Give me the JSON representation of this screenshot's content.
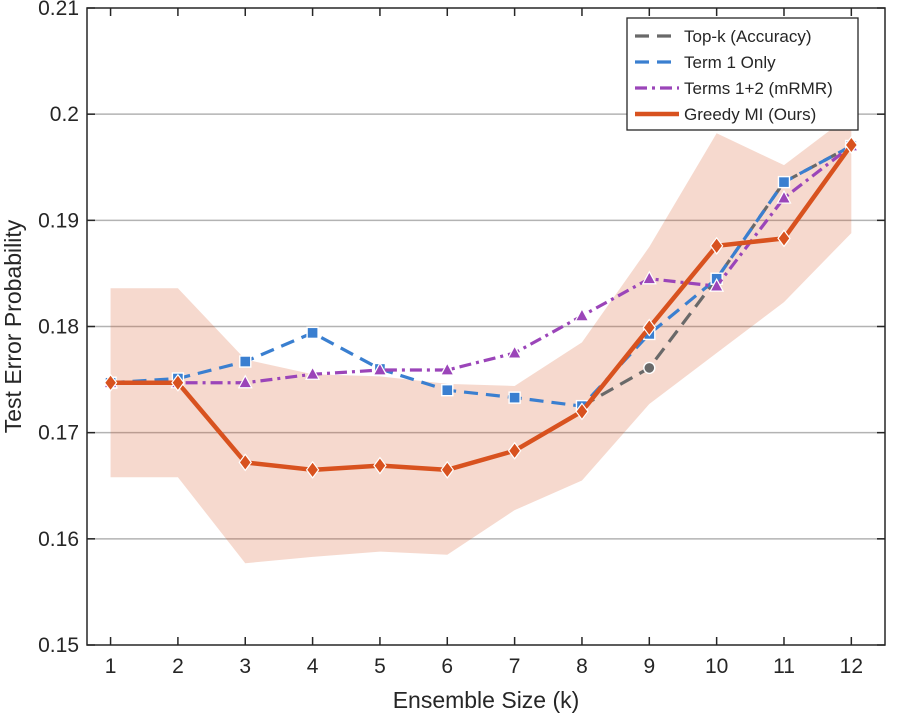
{
  "chart_data": {
    "type": "line",
    "title": "",
    "xlabel": "Ensemble Size (k)",
    "ylabel": "Test Error Probability",
    "x": [
      1,
      2,
      3,
      4,
      5,
      6,
      7,
      8,
      9,
      10,
      11,
      12
    ],
    "xlim": [
      0.65,
      12.5
    ],
    "ylim": [
      0.15,
      0.21
    ],
    "yticks": [
      0.15,
      0.16,
      0.17,
      0.18,
      0.19,
      0.2,
      0.21
    ],
    "ytick_labels": [
      "0.15",
      "0.16",
      "0.17",
      "0.18",
      "0.19",
      "0.2",
      "0.21"
    ],
    "xtick_labels": [
      "1",
      "2",
      "3",
      "4",
      "5",
      "6",
      "7",
      "8",
      "9",
      "10",
      "11",
      "12"
    ],
    "grid": "horizontal",
    "legend_position": "top-right",
    "series": [
      {
        "name": "Top-k (Accuracy)",
        "color": "#696969",
        "dash": "dashed",
        "marker": "circle",
        "x": [
          8,
          9,
          10,
          11,
          12
        ],
        "values": [
          0.1725,
          0.1761,
          0.1845,
          0.1936,
          0.197
        ]
      },
      {
        "name": "Term 1 Only",
        "color": "#3A7FD0",
        "dash": "dashed",
        "marker": "square",
        "x": [
          1,
          2,
          3,
          4,
          5,
          6,
          7,
          8,
          9,
          10,
          11,
          12
        ],
        "values": [
          0.1747,
          0.1751,
          0.1767,
          0.1794,
          0.176,
          0.174,
          0.1733,
          0.1725,
          0.1793,
          0.1845,
          0.1936,
          0.197
        ]
      },
      {
        "name": "Terms 1+2 (mRMR)",
        "color": "#9B45B9",
        "dash": "dashdot",
        "marker": "triangle",
        "x": [
          1,
          2,
          3,
          4,
          5,
          6,
          7,
          8,
          9,
          10,
          11,
          12
        ],
        "values": [
          0.1747,
          0.1747,
          0.1747,
          0.1755,
          0.1759,
          0.1759,
          0.1775,
          0.181,
          0.1845,
          0.1838,
          0.1921,
          0.197
        ]
      },
      {
        "name": "Greedy MI (Ours)",
        "color": "#D8521F",
        "dash": "solid",
        "marker": "diamond",
        "x": [
          1,
          2,
          3,
          4,
          5,
          6,
          7,
          8,
          9,
          10,
          11,
          12
        ],
        "values": [
          0.1747,
          0.1747,
          0.1672,
          0.1665,
          0.1669,
          0.1665,
          0.1683,
          0.172,
          0.1799,
          0.1876,
          0.1883,
          0.1971
        ],
        "band_lower": [
          0.1658,
          0.1658,
          0.1577,
          0.1583,
          0.1588,
          0.1585,
          0.1627,
          0.1655,
          0.1727,
          0.1775,
          0.1823,
          0.1888
        ],
        "band_upper": [
          0.1836,
          0.1836,
          0.1769,
          0.1755,
          0.1753,
          0.1746,
          0.1744,
          0.1785,
          0.1875,
          0.1982,
          0.1952,
          0.2
        ]
      }
    ]
  }
}
